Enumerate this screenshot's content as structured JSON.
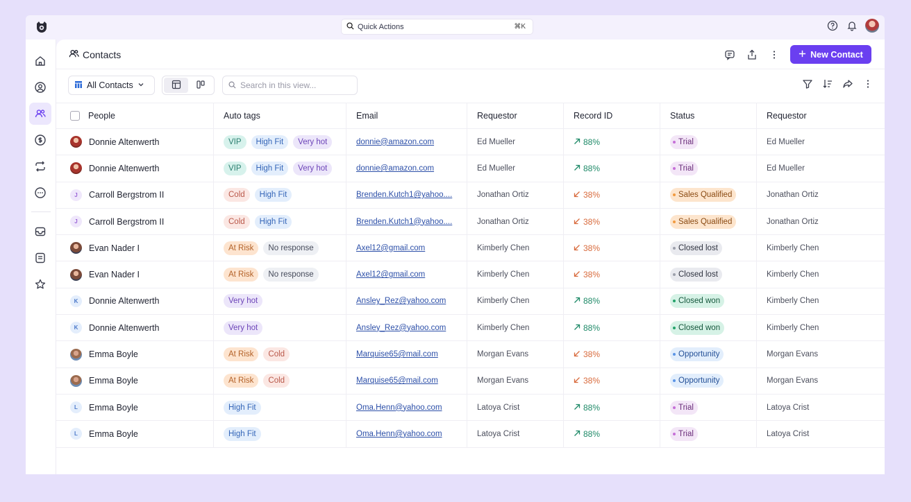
{
  "quick_actions": {
    "label": "Quick Actions",
    "shortcut": "⌘K"
  },
  "page": {
    "title": "Contacts",
    "new_button": "New Contact"
  },
  "toolbar": {
    "view_label": "All Contacts",
    "search_placeholder": "Search in this view..."
  },
  "columns": [
    "People",
    "Auto tags",
    "Email",
    "Requestor",
    "Record ID",
    "Status",
    "Requestor"
  ],
  "rows": [
    {
      "avatar": "photo-red",
      "initial": "",
      "name": "Donnie Altenwerth",
      "tags": [
        "VIP",
        "High Fit",
        "Very hot"
      ],
      "email": "donnie@amazon.com",
      "requestor": "Ed Mueller",
      "trend": "up",
      "record": "88%",
      "status": "Trial",
      "requestor2": "Ed Mueller"
    },
    {
      "avatar": "photo-red",
      "initial": "",
      "name": "Donnie Altenwerth",
      "tags": [
        "VIP",
        "High Fit",
        "Very hot"
      ],
      "email": "donnie@amazon.com",
      "requestor": "Ed Mueller",
      "trend": "up",
      "record": "88%",
      "status": "Trial",
      "requestor2": "Ed Mueller"
    },
    {
      "avatar": "l-purple",
      "initial": "J",
      "name": "Carroll Bergstrom II",
      "tags": [
        "Cold",
        "High Fit"
      ],
      "email": "Brenden.Kutch1@yahoo....",
      "requestor": "Jonathan Ortiz",
      "trend": "down",
      "record": "38%",
      "status": "Sales Qualified",
      "requestor2": "Jonathan Ortiz"
    },
    {
      "avatar": "l-purple",
      "initial": "J",
      "name": "Carroll Bergstrom II",
      "tags": [
        "Cold",
        "High Fit"
      ],
      "email": "Brenden.Kutch1@yahoo....",
      "requestor": "Jonathan Ortiz",
      "trend": "down",
      "record": "38%",
      "status": "Sales Qualified",
      "requestor2": "Jonathan Ortiz"
    },
    {
      "avatar": "photo-brown",
      "initial": "",
      "name": "Evan Nader I",
      "tags": [
        "At Risk",
        "No response"
      ],
      "email": "Axel12@gmail.com",
      "requestor": "Kimberly Chen",
      "trend": "down",
      "record": "38%",
      "status": "Closed lost",
      "requestor2": "Kimberly Chen"
    },
    {
      "avatar": "photo-brown",
      "initial": "",
      "name": "Evan Nader I",
      "tags": [
        "At Risk",
        "No response"
      ],
      "email": "Axel12@gmail.com",
      "requestor": "Kimberly Chen",
      "trend": "down",
      "record": "38%",
      "status": "Closed lost",
      "requestor2": "Kimberly Chen"
    },
    {
      "avatar": "l-blue",
      "initial": "K",
      "name": "Donnie Altenwerth",
      "tags": [
        "Very hot"
      ],
      "email": "Ansley_Rez@yahoo.com",
      "requestor": "Kimberly Chen",
      "trend": "up",
      "record": "88%",
      "status": "Closed won",
      "requestor2": "Kimberly Chen"
    },
    {
      "avatar": "l-blue",
      "initial": "K",
      "name": "Donnie Altenwerth",
      "tags": [
        "Very hot"
      ],
      "email": "Ansley_Rez@yahoo.com",
      "requestor": "Kimberly Chen",
      "trend": "up",
      "record": "88%",
      "status": "Closed won",
      "requestor2": "Kimberly Chen"
    },
    {
      "avatar": "photo-blue",
      "initial": "",
      "name": "Emma Boyle",
      "tags": [
        "At Risk",
        "Cold"
      ],
      "email": "Marquise65@mail.com",
      "requestor": "Morgan Evans",
      "trend": "down",
      "record": "38%",
      "status": "Opportunity",
      "requestor2": "Morgan Evans"
    },
    {
      "avatar": "photo-blue",
      "initial": "",
      "name": "Emma Boyle",
      "tags": [
        "At Risk",
        "Cold"
      ],
      "email": "Marquise65@mail.com",
      "requestor": "Morgan Evans",
      "trend": "down",
      "record": "38%",
      "status": "Opportunity",
      "requestor2": "Morgan Evans"
    },
    {
      "avatar": "l-blue",
      "initial": "L",
      "name": "Emma Boyle",
      "tags": [
        "High Fit"
      ],
      "email": "Oma.Henn@yahoo.com",
      "requestor": "Latoya Crist",
      "trend": "up",
      "record": "88%",
      "status": "Trial",
      "requestor2": "Latoya Crist"
    },
    {
      "avatar": "l-blue",
      "initial": "L",
      "name": "Emma Boyle",
      "tags": [
        "High Fit"
      ],
      "email": "Oma.Henn@yahoo.com",
      "requestor": "Latoya Crist",
      "trend": "up",
      "record": "88%",
      "status": "Trial",
      "requestor2": "Latoya Crist"
    }
  ],
  "colors": {
    "accent": "#6a3ff0",
    "background": "#e6e0fb",
    "up": "#1f8a68",
    "down": "#d86a3c"
  },
  "icons": {
    "topbar": [
      "logo-icon",
      "search-icon",
      "help-icon",
      "bell-icon",
      "avatar"
    ],
    "sidebar": [
      "home-icon",
      "user-circle-icon",
      "users-icon",
      "dollar-icon",
      "repeat-icon",
      "more-circle-icon",
      "inbox-icon",
      "document-icon",
      "star-icon"
    ],
    "header": [
      "users-icon",
      "comment-icon",
      "share-icon",
      "more-vertical-icon",
      "plus-icon"
    ],
    "toolbar": [
      "table-icon",
      "chevron-down-icon",
      "grid-view-icon",
      "kanban-icon",
      "search-icon",
      "filter-icon",
      "sort-icon",
      "forward-icon",
      "more-vertical-icon"
    ]
  }
}
